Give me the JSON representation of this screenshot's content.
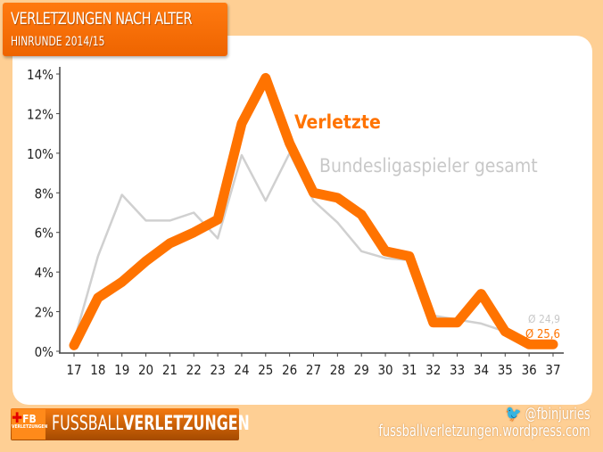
{
  "header": {
    "title": "VERLETZUNGEN NACH ALTER",
    "subtitle": "HINRUNDE 2014/15"
  },
  "footer": {
    "logo_badge": "FB",
    "logo_badge_sub": "VERLETZUNGEN",
    "logo_text_light": "FUSSBALL",
    "logo_text_bold": "VERLETZUNGEN",
    "twitter": "@fbinjuries",
    "url": "fussballverletzungen.wordpress.com"
  },
  "colors": {
    "accent": "#ff7300",
    "gray": "#d0d0d0",
    "background": "#fecf94"
  },
  "chart_data": {
    "type": "line",
    "x": [
      17,
      18,
      19,
      20,
      21,
      22,
      23,
      24,
      25,
      26,
      27,
      28,
      29,
      30,
      31,
      32,
      33,
      34,
      35,
      36,
      37
    ],
    "series": [
      {
        "name": "Bundesligaspieler gesamt",
        "color": "#d0d0d0",
        "avg_label": "Ø 24,9",
        "values": [
          0.5,
          4.8,
          7.9,
          6.6,
          6.6,
          7.0,
          5.7,
          9.9,
          7.6,
          10.0,
          7.6,
          6.5,
          5.05,
          4.7,
          4.6,
          1.8,
          1.6,
          1.4,
          1.0,
          0.4,
          0.4
        ]
      },
      {
        "name": "Verletzte",
        "color": "#ff7300",
        "avg_label": "Ø 25,6",
        "values": [
          0.3,
          2.7,
          3.5,
          4.55,
          5.45,
          6.0,
          6.65,
          11.5,
          13.8,
          10.5,
          8.0,
          7.75,
          6.9,
          5.05,
          4.8,
          1.45,
          1.45,
          2.9,
          1.0,
          0.35,
          0.35
        ]
      }
    ],
    "yticks": [
      "0%",
      "2%",
      "4%",
      "6%",
      "8%",
      "10%",
      "12%",
      "14%"
    ],
    "ylim": [
      0,
      14
    ],
    "grid": false,
    "legend": "inline"
  }
}
